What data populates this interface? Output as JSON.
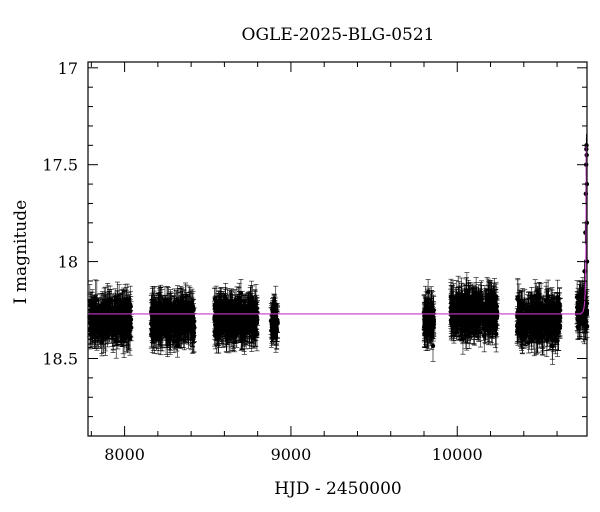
{
  "chart_data": {
    "type": "scatter",
    "title": "OGLE-2025-BLG-0521",
    "xlabel": "HJD - 2450000",
    "ylabel": "I magnitude",
    "xlim": [
      7780,
      10780
    ],
    "ylim": [
      18.9,
      16.97
    ],
    "y_inverted": true,
    "grid": false,
    "x_ticks": [
      8000,
      9000,
      10000
    ],
    "x_tick_labels": [
      "8000",
      "9000",
      "10000"
    ],
    "y_ticks": [
      17,
      17.5,
      18,
      18.5
    ],
    "y_tick_labels": [
      "17",
      "17.5",
      "18",
      "18.5"
    ],
    "baseline_mag": 18.27,
    "marker_color": "#000000",
    "model_color": "#cc33cc",
    "season_blocks": [
      {
        "start": 7790,
        "end": 8040,
        "center_mag": 18.3,
        "scatter": 0.09
      },
      {
        "start": 8160,
        "end": 8420,
        "center_mag": 18.3,
        "scatter": 0.09
      },
      {
        "start": 8540,
        "end": 8800,
        "center_mag": 18.3,
        "scatter": 0.09
      },
      {
        "start": 8880,
        "end": 8920,
        "center_mag": 18.3,
        "scatter": 0.06
      },
      {
        "start": 9800,
        "end": 9860,
        "center_mag": 18.3,
        "scatter": 0.09
      },
      {
        "start": 9960,
        "end": 10240,
        "center_mag": 18.27,
        "scatter": 0.09
      },
      {
        "start": 10360,
        "end": 10620,
        "center_mag": 18.3,
        "scatter": 0.1
      },
      {
        "start": 10720,
        "end": 10780,
        "center_mag": 18.25,
        "scatter": 0.08
      }
    ],
    "event": {
      "peak_time": 10776,
      "peak_mag": 17.4,
      "rise_start": 10745,
      "points": [
        {
          "x": 10765,
          "y": 18.05
        },
        {
          "x": 10770,
          "y": 17.85
        },
        {
          "x": 10773,
          "y": 17.65
        },
        {
          "x": 10775,
          "y": 17.5
        },
        {
          "x": 10776,
          "y": 17.42
        },
        {
          "x": 10777,
          "y": 17.4
        },
        {
          "x": 10778,
          "y": 17.45
        },
        {
          "x": 10779,
          "y": 17.6
        },
        {
          "x": 10779,
          "y": 17.8
        },
        {
          "x": 10780,
          "y": 18.0
        }
      ]
    }
  }
}
